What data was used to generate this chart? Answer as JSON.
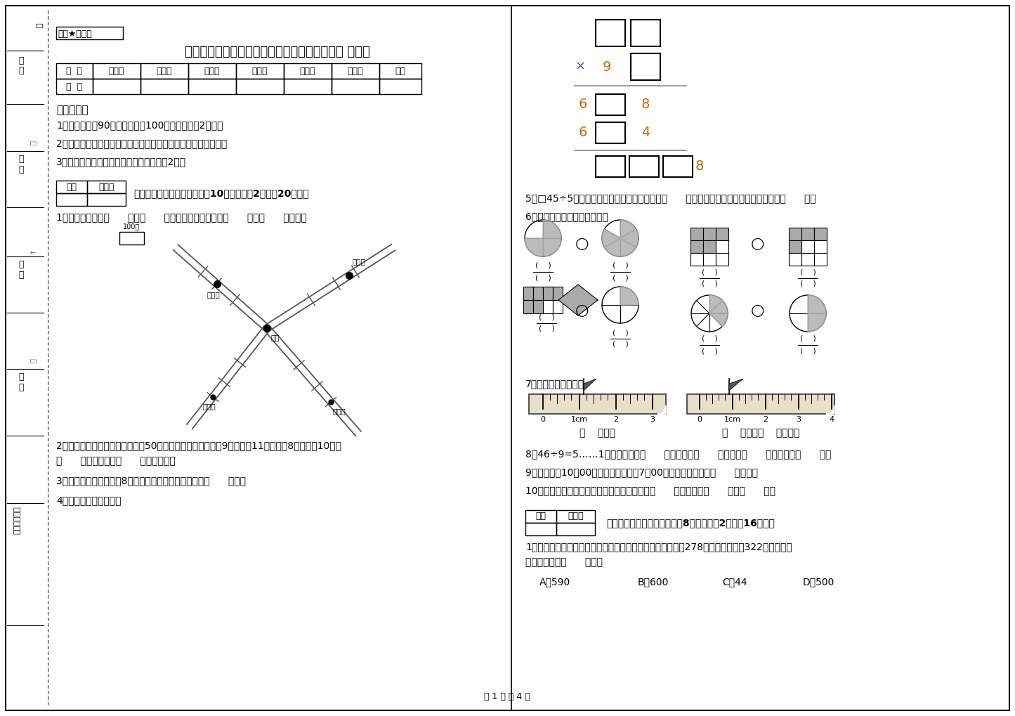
{
  "title": "河北省重点小学三年级数学下学期期中考试试题 附答案",
  "subtitle": "绝密★启用前",
  "page_footer": "第 1 页 共 4 页",
  "bg_color": "#ffffff",
  "table_headers": [
    "题  号",
    "填空题",
    "选择题",
    "判断题",
    "计算题",
    "综合题",
    "应用题",
    "总分"
  ],
  "notice_title": "考试须知：",
  "notice_items": [
    "1、考试时间：90分钟，满分为100分（含卷面分2分）。",
    "2、请首先按要求在试卷的指定位置填写您的姓名、班级、学号。",
    "3、不要在试卷上乱写乱画，卷面不整洁扣2分。"
  ],
  "section1_title": "一、用心思考，正确填空（共10小题，每题2分，共20分）。",
  "q1": "1、小红家在学校（      ）方（      ）米处；小明家在学校（      ）方（      ）米处。",
  "q2a": "2、体育老师对第一小组同学进行50米跑测试，成绩如下小红9秒，小丽11秒，小明8秒，小军10秒。",
  "q2b": "（      ）跑得最快，（      ）跑得最慢。",
  "q3": "3、小明从一楼到三楼用8秒，照这样他从一楼到五楼用（      ）秒。",
  "q4": "4、在里填上适当的数。",
  "q5": "5、□45÷5，要使商是两位数，口里最大可填（      ）；要使商是三位数，口里最小应填（      ）。",
  "q6": "6、看图写分数，并比较大小。",
  "q7": "7、量出钉子的长度。",
  "q8": "8、46÷9=5……1中，被除数是（      ），除数是（      ），商是（      ），余数是（      ）。",
  "q9": "9、小林晚上10：00睡觉，第二天早上7：00起床，他一共睡了（      ）小时。",
  "q10": "10、在进位加法中，不管哪一位上的数相加满（      ），都要向（      ）进（      ）。",
  "section2_title": "二、反复比较，慎重选择（共8小题，每题2分，共16分）。",
  "mc1a": "1、广州新电视塔是广州市目前最高的建筑，它比中信大厦高278米。中信大厦高322米，那么广",
  "mc1b": "州新电视塔高（      ）米。",
  "mc1_opts": [
    "A、590",
    "B、600",
    "C、44",
    "D、500"
  ],
  "left_labels": [
    "学号",
    "姓名",
    "班级",
    "学校",
    "乡镇（街道）"
  ],
  "map_labels": {
    "scale": "100米",
    "xhj": "小红家",
    "xmj_top": "小明家",
    "school": "学校",
    "xmj_bot": "小明家",
    "xmj_bot2": "小丽家"
  }
}
